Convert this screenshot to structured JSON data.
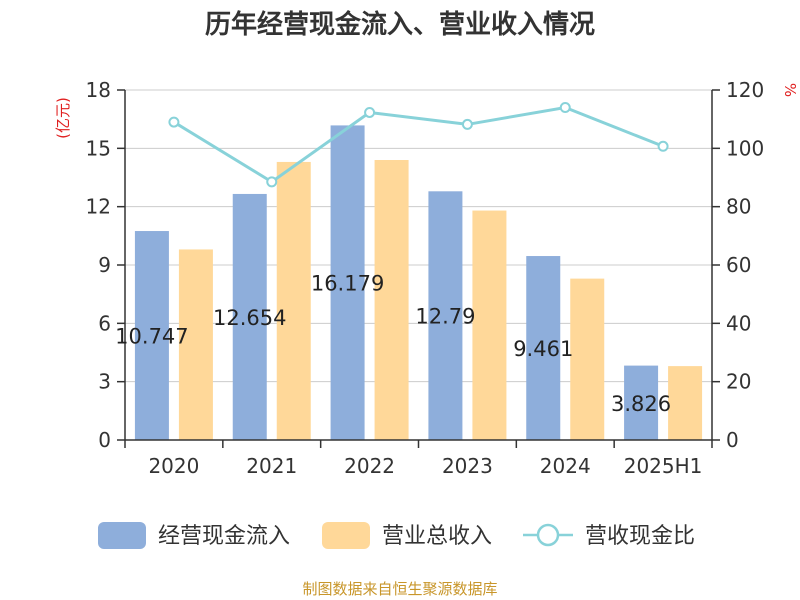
{
  "chart_data": {
    "type": "bar",
    "title": "历年经营现金流入、营业收入情况",
    "categories": [
      "2020",
      "2021",
      "2022",
      "2023",
      "2024",
      "2025H1"
    ],
    "series": [
      {
        "name": "经营现金流入",
        "kind": "bar",
        "axis": "left",
        "color": "#8eaedb",
        "values": [
          10.747,
          12.654,
          16.179,
          12.79,
          9.461,
          3.826
        ]
      },
      {
        "name": "营业总收入",
        "kind": "bar",
        "axis": "left",
        "color": "#ffd899",
        "values": [
          9.8,
          14.3,
          14.4,
          11.8,
          8.3,
          3.8
        ]
      },
      {
        "name": "营收现金比",
        "kind": "line",
        "axis": "right",
        "color": "#88d2d9",
        "values": [
          109,
          88.5,
          112.3,
          108.2,
          114,
          100.7
        ]
      }
    ],
    "data_labels": [
      "10.747",
      "12.654",
      "16.179",
      "12.79",
      "9.461",
      "3.826"
    ],
    "y_left": {
      "label": "(亿元)",
      "min": 0,
      "max": 18,
      "ticks": [
        0,
        3,
        6,
        9,
        12,
        15,
        18
      ]
    },
    "y_right": {
      "label": "%",
      "min": 0,
      "max": 120,
      "ticks": [
        0,
        20,
        40,
        60,
        80,
        100,
        120
      ]
    },
    "grid": true,
    "legend_position": "bottom"
  },
  "source": "制图数据来自恒生聚源数据库",
  "colors": {
    "axis_label_red": "#e02020",
    "source_gold": "#c8962a",
    "grid": "#cccccc"
  }
}
